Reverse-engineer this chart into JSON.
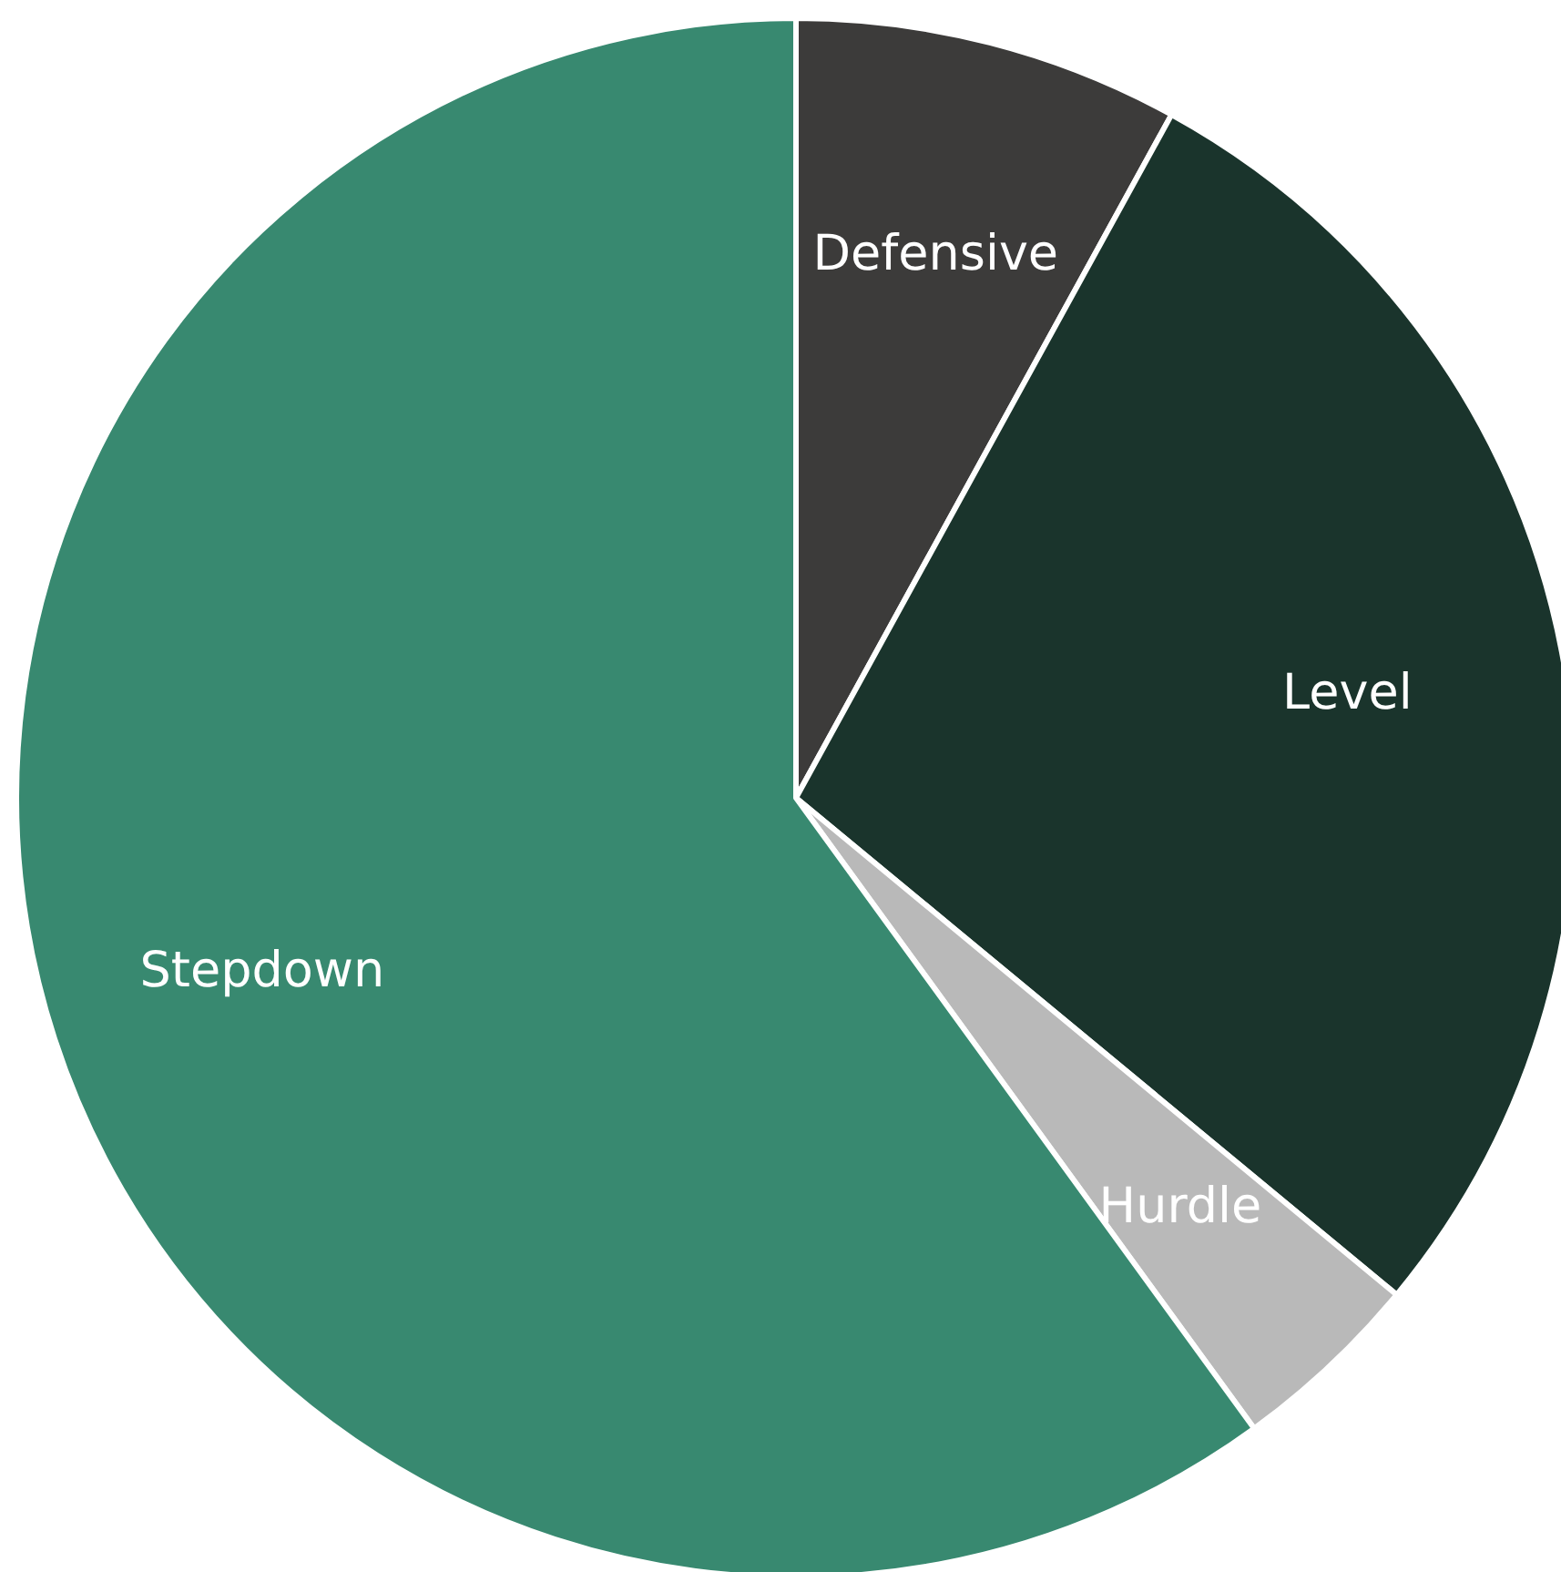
{
  "chart_data": {
    "type": "pie",
    "categories": [
      "Defensive",
      "Level",
      "Hurdle",
      "Stepdown"
    ],
    "values": [
      8,
      28,
      4,
      60
    ],
    "colors": [
      "#3c3b3a",
      "#1a342c",
      "#b9b9b9",
      "#388970"
    ],
    "legend": false
  }
}
